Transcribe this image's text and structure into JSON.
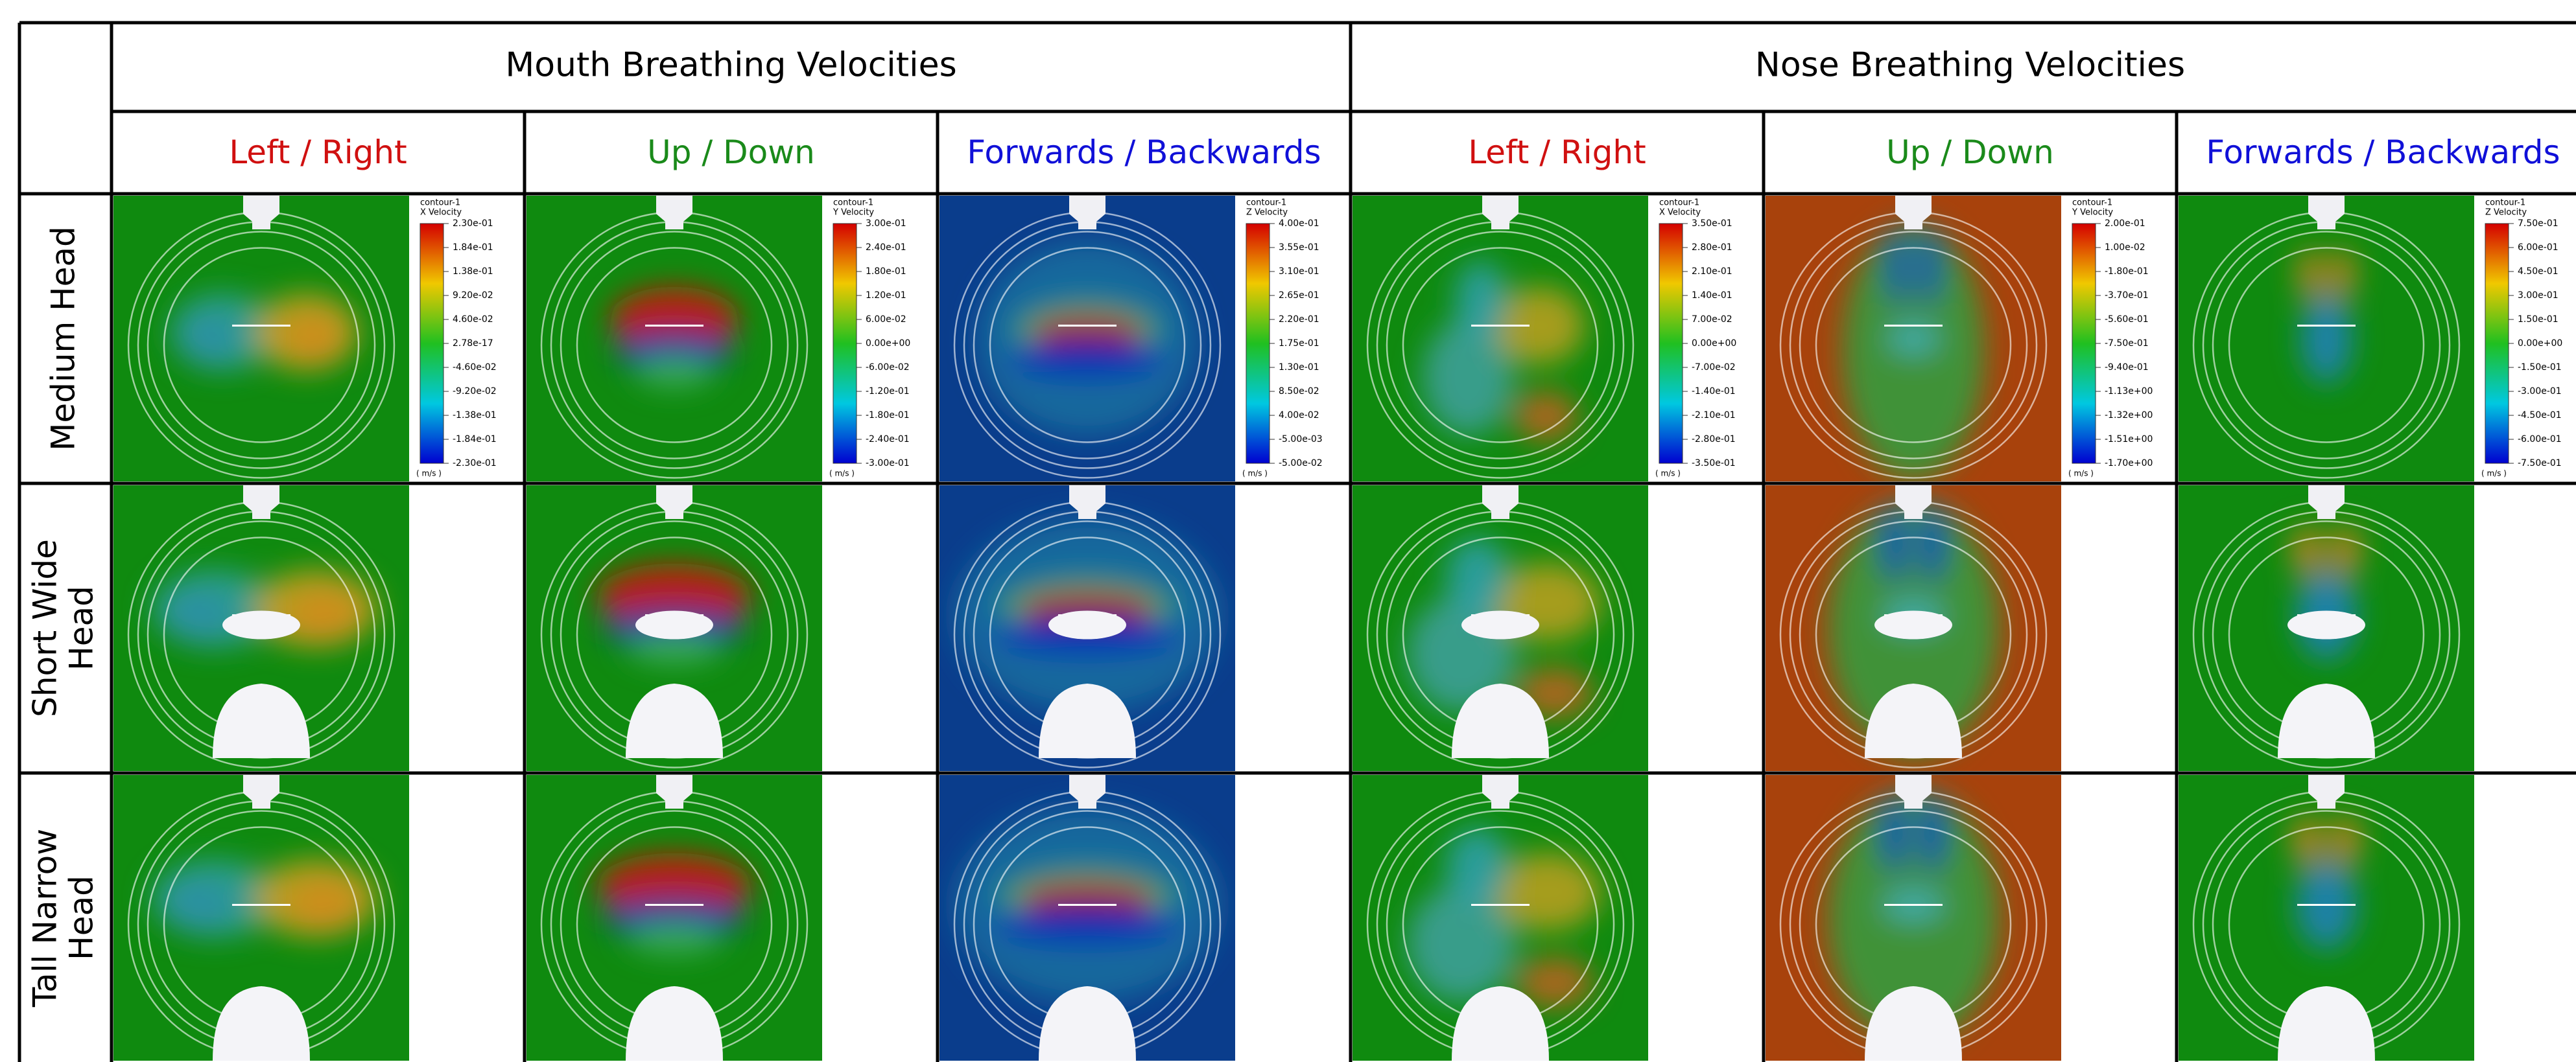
{
  "header": {
    "groups": [
      {
        "title": "Mouth Breathing Velocities",
        "columns": [
          "Left / Right",
          "Up / Down",
          "Forwards / Backwards"
        ]
      },
      {
        "title": "Nose Breathing Velocities",
        "columns": [
          "Left / Right",
          "Up / Down",
          "Forwards / Backwards"
        ]
      }
    ]
  },
  "rows": [
    {
      "label": [
        "Medium Head"
      ]
    },
    {
      "label": [
        "Short Wide",
        "Head"
      ]
    },
    {
      "label": [
        "Tall Narrow",
        "Head"
      ]
    }
  ],
  "legends": [
    {
      "title": "contour-1",
      "quantity": "X Velocity",
      "unit": "( m/s )",
      "ticks": [
        "2.30e-01",
        "1.84e-01",
        "1.38e-01",
        "9.20e-02",
        "4.60e-02",
        "2.78e-17",
        "-4.60e-02",
        "-9.20e-02",
        "-1.38e-01",
        "-1.84e-01",
        "-2.30e-01"
      ]
    },
    {
      "title": "contour-1",
      "quantity": "Y Velocity",
      "unit": "( m/s )",
      "ticks": [
        "3.00e-01",
        "2.40e-01",
        "1.80e-01",
        "1.20e-01",
        "6.00e-02",
        "0.00e+00",
        "-6.00e-02",
        "-1.20e-01",
        "-1.80e-01",
        "-2.40e-01",
        "-3.00e-01"
      ]
    },
    {
      "title": "contour-1",
      "quantity": "Z Velocity",
      "unit": "( m/s )",
      "ticks": [
        "4.00e-01",
        "3.55e-01",
        "3.10e-01",
        "2.65e-01",
        "2.20e-01",
        "1.75e-01",
        "1.30e-01",
        "8.50e-02",
        "4.00e-02",
        "-5.00e-03",
        "-5.00e-02"
      ]
    },
    {
      "title": "contour-1",
      "quantity": "X Velocity",
      "unit": "( m/s )",
      "ticks": [
        "3.50e-01",
        "2.80e-01",
        "2.10e-01",
        "1.40e-01",
        "7.00e-02",
        "0.00e+00",
        "-7.00e-02",
        "-1.40e-01",
        "-2.10e-01",
        "-2.80e-01",
        "-3.50e-01"
      ]
    },
    {
      "title": "contour-1",
      "quantity": "Y Velocity",
      "unit": "( m/s )",
      "ticks": [
        "2.00e-01",
        "1.00e-02",
        "-1.80e-01",
        "-3.70e-01",
        "-5.60e-01",
        "-7.50e-01",
        "-9.40e-01",
        "-1.13e+00",
        "-1.32e+00",
        "-1.51e+00",
        "-1.70e+00"
      ]
    },
    {
      "title": "contour-1",
      "quantity": "Z Velocity",
      "unit": "( m/s )",
      "ticks": [
        "7.50e-01",
        "6.00e-01",
        "4.50e-01",
        "3.00e-01",
        "1.50e-01",
        "0.00e+00",
        "-1.50e-01",
        "-3.00e-01",
        "-4.50e-01",
        "-6.00e-01",
        "-7.50e-01"
      ]
    }
  ]
}
